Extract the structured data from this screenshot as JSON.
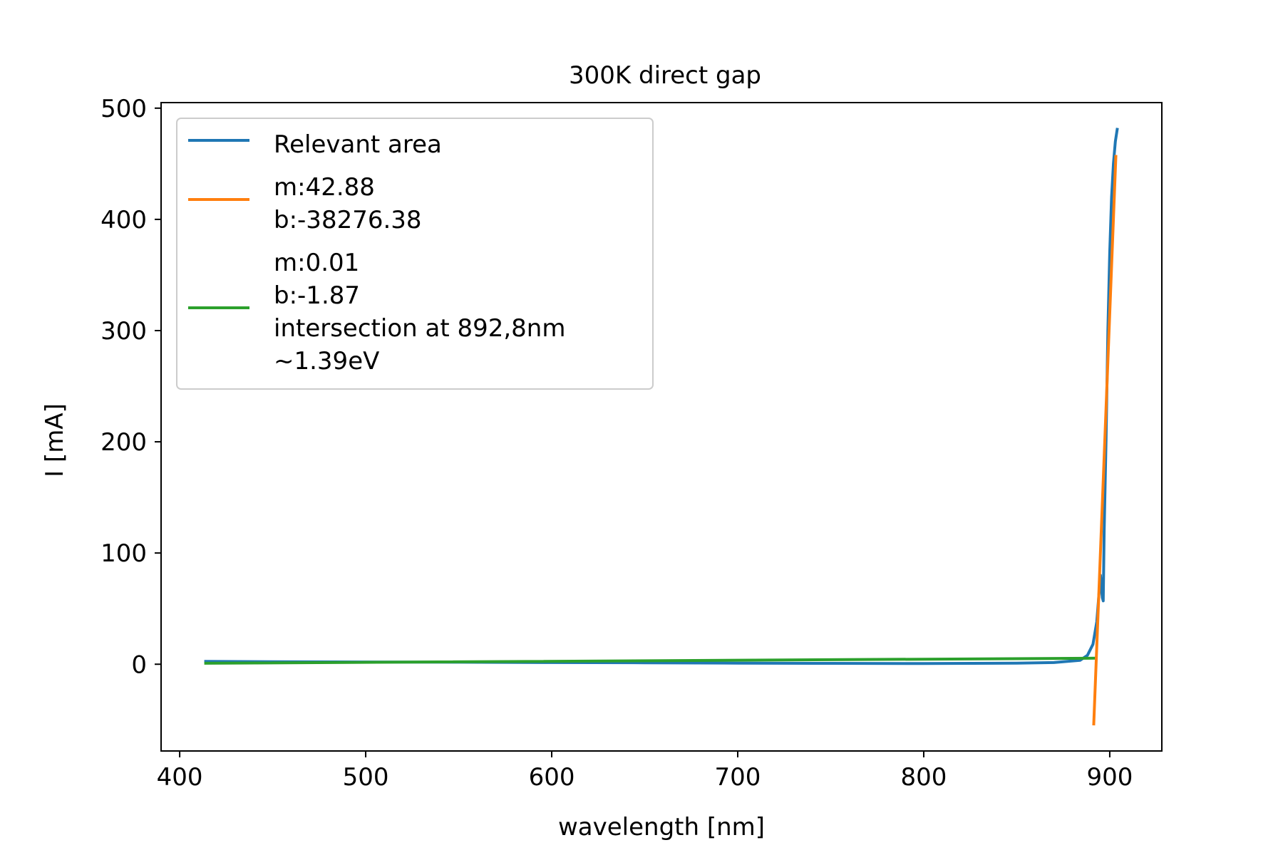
{
  "chart_data": {
    "type": "line",
    "title": "300K direct gap",
    "xlabel": "wavelength [nm]",
    "ylabel": "I [mA]",
    "xlim": [
      390,
      928
    ],
    "ylim": [
      -78,
      505
    ],
    "xticks": [
      400,
      500,
      600,
      700,
      800,
      900
    ],
    "yticks": [
      0,
      100,
      200,
      300,
      400,
      500
    ],
    "grid": false,
    "legend_position": "upper-left",
    "series": [
      {
        "name": "Relevant area",
        "color": "#1f77b4",
        "x": [
          414,
          450,
          500,
          550,
          600,
          650,
          700,
          750,
          800,
          850,
          870,
          884,
          888,
          891,
          893,
          895,
          896,
          896.5,
          897,
          898,
          899,
          900,
          901,
          902,
          903,
          904
        ],
        "y": [
          2.5,
          2.3,
          2.0,
          1.8,
          1.5,
          1.3,
          1.0,
          0.8,
          0.6,
          0.9,
          1.5,
          3.5,
          8,
          18,
          38,
          80,
          60,
          57,
          120,
          200,
          300,
          370,
          420,
          450,
          470,
          481
        ]
      },
      {
        "name": "m:42.88\nb:-38276.38",
        "color": "#ff7f0e",
        "x": [
          891.4,
          903.3
        ],
        "y": [
          -53.7,
          456.6
        ]
      },
      {
        "name": "m:0.01\nb:-1.87\nintersection at 892,8nm\n~1.39eV",
        "color": "#2ca02c",
        "x": [
          414,
          892
        ],
        "y": [
          0.86,
          5.4
        ]
      }
    ]
  }
}
